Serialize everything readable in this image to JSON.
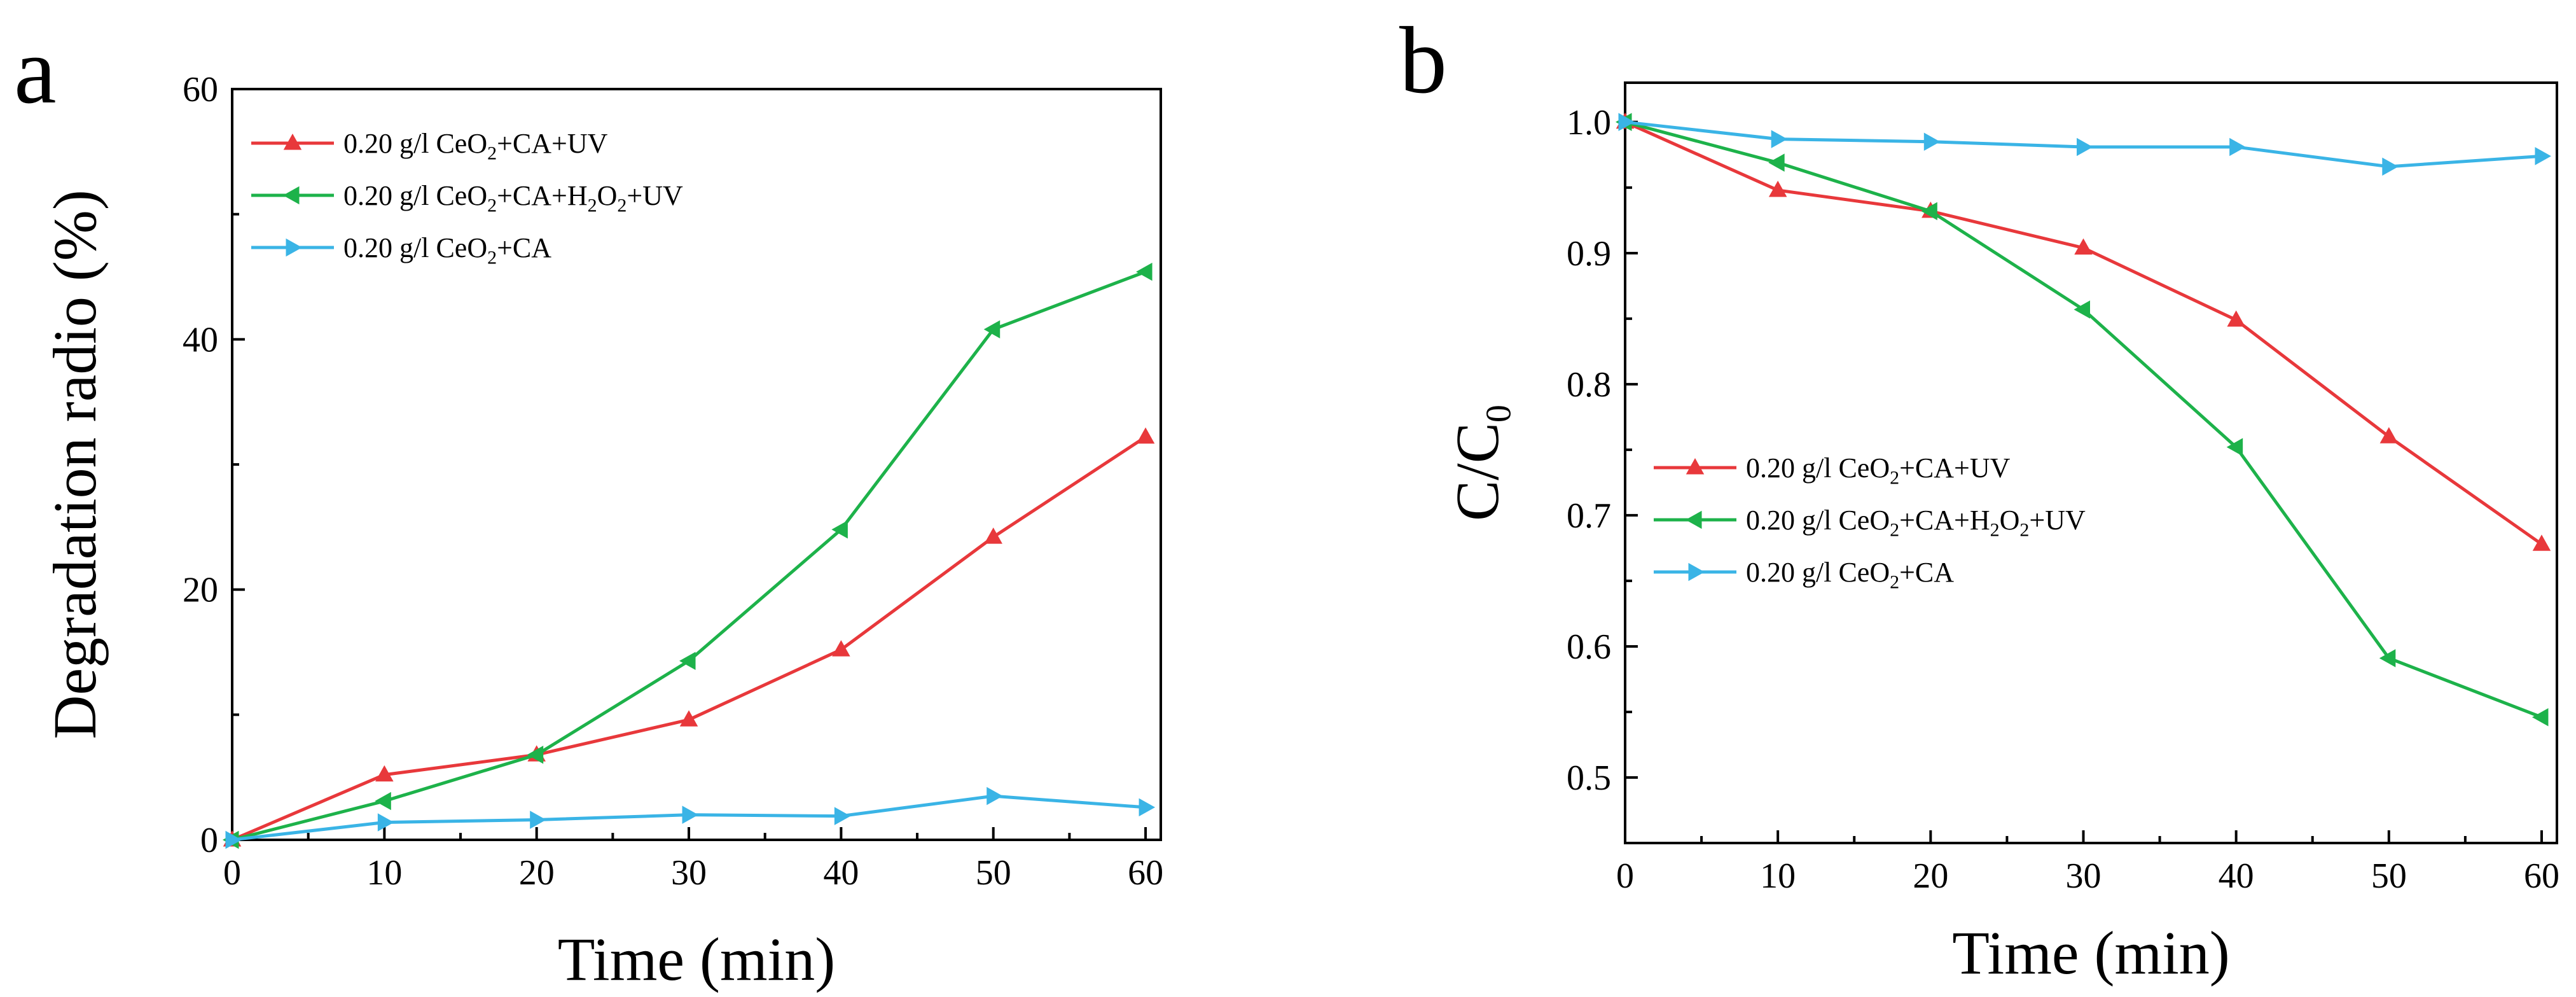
{
  "panels": {
    "a_label": "a",
    "b_label": "b"
  },
  "chart_data": [
    {
      "type": "line",
      "panel": "a",
      "title": "",
      "xlabel": "Time (min)",
      "ylabel": "Degradation radio  (%)",
      "xlim": [
        0,
        61
      ],
      "ylim": [
        0,
        60
      ],
      "xticks": [
        0,
        10,
        20,
        30,
        40,
        50,
        60
      ],
      "yticks": [
        0,
        20,
        40,
        60
      ],
      "legend_position": "top-left",
      "x": [
        0,
        10,
        20,
        30,
        40,
        50,
        60
      ],
      "series": [
        {
          "name": "0.20 g/l CeO2+CA+UV",
          "legend_parts": [
            "0.20 g/l CeO",
            "2",
            "+CA+UV"
          ],
          "color": "#e8383b",
          "marker": "triangle-up",
          "values": [
            0,
            5.2,
            6.8,
            9.6,
            15.2,
            24.2,
            32.2
          ]
        },
        {
          "name": "0.20 g/l CeO2+CA+H2O2+UV",
          "legend_parts": [
            "0.20 g/l CeO",
            "2",
            "+CA+H",
            "2",
            "O",
            "2",
            "+UV"
          ],
          "color": "#1db24a",
          "marker": "triangle-left",
          "values": [
            0,
            3.1,
            6.8,
            14.3,
            24.8,
            40.8,
            45.4
          ]
        },
        {
          "name": "0.20 g/l CeO2+CA",
          "legend_parts": [
            "0.20 g/l CeO",
            "2",
            "+CA"
          ],
          "color": "#3ab4e6",
          "marker": "triangle-right",
          "values": [
            0,
            1.4,
            1.6,
            2.0,
            1.9,
            3.5,
            2.6
          ]
        }
      ]
    },
    {
      "type": "line",
      "panel": "b",
      "title": "",
      "xlabel": "Time (min)",
      "ylabel_parts": [
        "C/C",
        "0"
      ],
      "xlim": [
        0,
        61
      ],
      "ylim": [
        0.45,
        1.03
      ],
      "xticks": [
        0,
        10,
        20,
        30,
        40,
        50,
        60
      ],
      "yticks": [
        "0.5",
        "0.6",
        "0.7",
        "0.8",
        "0.9",
        "1.0"
      ],
      "legend_position": "center-left",
      "x": [
        0,
        10,
        20,
        30,
        40,
        50,
        60
      ],
      "series": [
        {
          "name": "0.20 g/l  CeO2+CA+UV",
          "legend_parts": [
            "0.20 g/l  CeO",
            "2",
            "+CA+UV"
          ],
          "color": "#e8383b",
          "marker": "triangle-up",
          "values": [
            1.0,
            0.948,
            0.932,
            0.904,
            0.849,
            0.76,
            0.678
          ]
        },
        {
          "name": "0.20 g/l  CeO2+CA+H2O2+UV",
          "legend_parts": [
            "0.20 g/l  CeO",
            "2",
            "+CA+H",
            "2",
            "O",
            "2",
            "+UV"
          ],
          "color": "#1db24a",
          "marker": "triangle-left",
          "values": [
            1.0,
            0.969,
            0.932,
            0.857,
            0.752,
            0.591,
            0.546
          ]
        },
        {
          "name": "0.20 g/l  CeO2+CA",
          "legend_parts": [
            "0.20 g/l  CeO",
            "2",
            "+CA"
          ],
          "color": "#3ab4e6",
          "marker": "triangle-right",
          "values": [
            1.0,
            0.987,
            0.985,
            0.981,
            0.981,
            0.966,
            0.974
          ]
        }
      ]
    }
  ]
}
